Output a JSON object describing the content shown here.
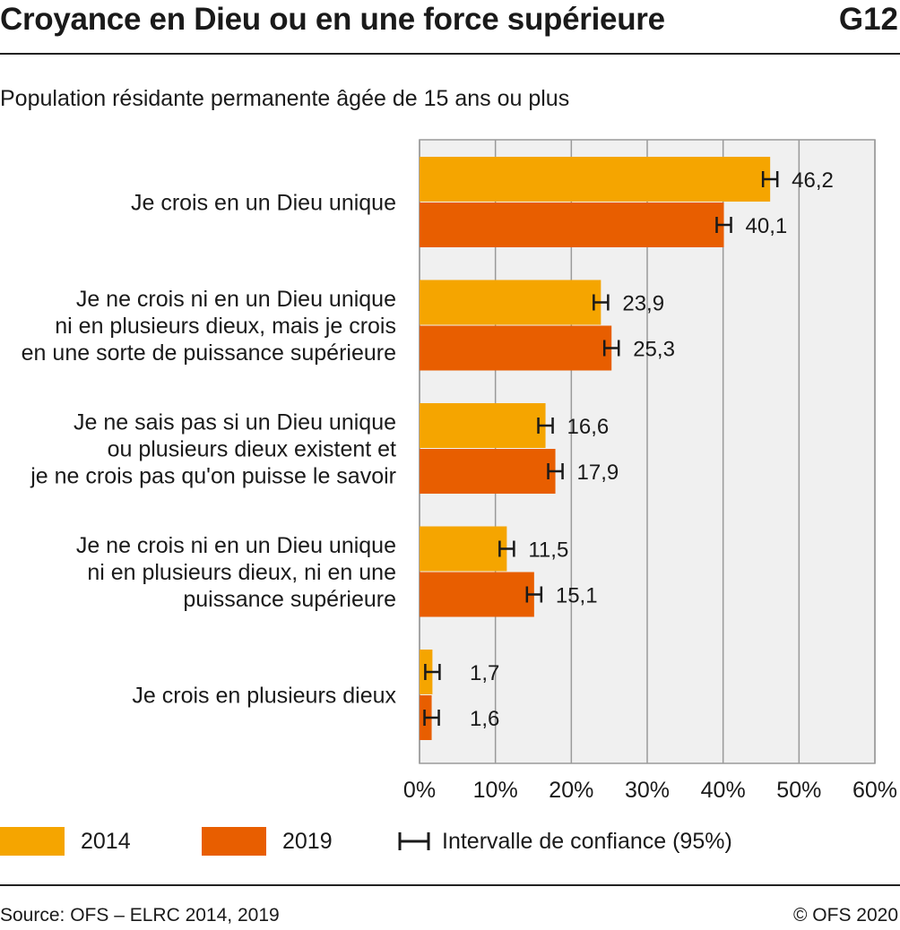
{
  "header": {
    "title": "Croyance en Dieu ou en une force supérieure",
    "code": "G12",
    "subtitle": "Population résidante permanente âgée de 15 ans ou plus"
  },
  "colors": {
    "series_2014": "#F5A500",
    "series_2019": "#E85E00",
    "plot_bg": "#F0F0F0",
    "grid": "#9a9a9a"
  },
  "chart_data": {
    "type": "bar",
    "orientation": "horizontal",
    "categories": [
      [
        "Je crois en un Dieu unique"
      ],
      [
        "Je ne crois ni en un Dieu unique",
        "ni en plusieurs dieux, mais je crois",
        "en une sorte de puissance supérieure"
      ],
      [
        "Je ne sais pas si un Dieu unique",
        "ou plusieurs dieux existent et",
        "je ne crois pas qu'on puisse le savoir"
      ],
      [
        "Je ne crois ni en un Dieu unique",
        "ni en plusieurs dieux, ni en une",
        "puissance supérieure"
      ],
      [
        "Je crois en plusieurs dieux"
      ]
    ],
    "series": [
      {
        "name": "2014",
        "values": [
          46.2,
          23.9,
          16.6,
          11.5,
          1.7
        ],
        "labels": [
          "46,2",
          "23,9",
          "16,6",
          "11,5",
          "1,7"
        ]
      },
      {
        "name": "2019",
        "values": [
          40.1,
          25.3,
          17.9,
          15.1,
          1.6
        ],
        "labels": [
          "40,1",
          "25,3",
          "17,9",
          "15,1",
          "1,6"
        ]
      }
    ],
    "xlim": [
      0,
      60
    ],
    "ticks": [
      0,
      10,
      20,
      30,
      40,
      50,
      60
    ],
    "tick_labels": [
      "0%",
      "10%",
      "20%",
      "30%",
      "40%",
      "50%",
      "60%"
    ],
    "grid": true,
    "error_bars": true,
    "legend_placement": "bottom",
    "legend_ci_label": "Intervalle de confiance (95%)"
  },
  "legend": {
    "s2014": "2014",
    "s2019": "2019",
    "ci": "Intervalle de confiance (95%)"
  },
  "footer": {
    "source": "Source: OFS – ELRC 2014, 2019",
    "copyright": "© OFS 2020"
  }
}
